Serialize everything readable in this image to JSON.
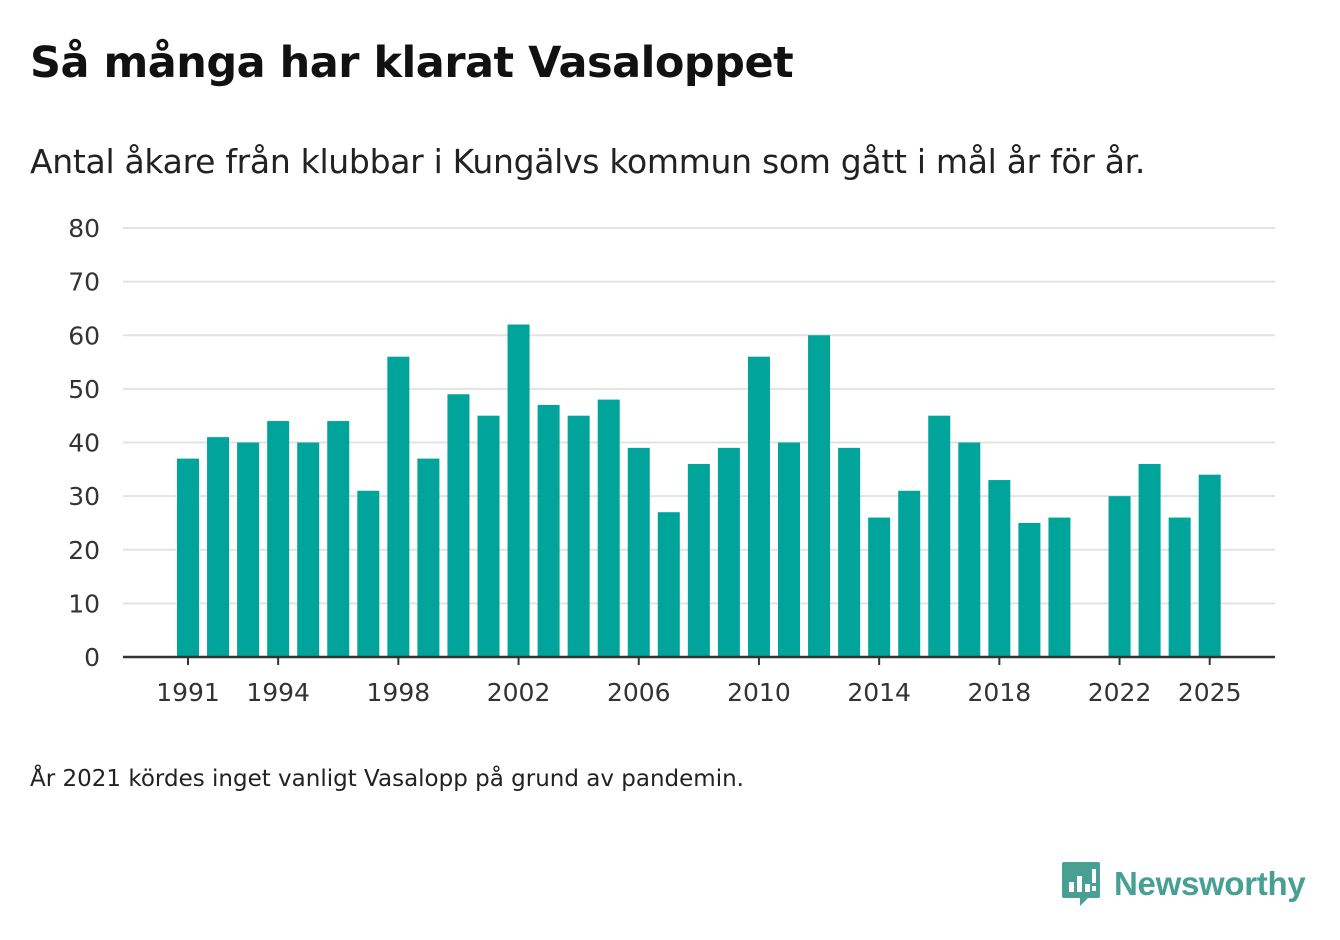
{
  "title": "Så många har klarat Vasaloppet",
  "subtitle": "Antal åkare från klubbar i Kungälvs kommun som gått i mål år för år.",
  "note": "År 2021 kördes inget vanligt Vasalopp på grund av pandemin.",
  "brand": {
    "name": "Newsworthy",
    "icon": "newsworthy-chart-bubble-icon",
    "color": "#48a095"
  },
  "colors": {
    "bar": "#00a49a",
    "grid": "#e3e3e3",
    "axis": "#333333"
  },
  "chart_data": {
    "type": "bar",
    "title": "Så många har klarat Vasaloppet",
    "xlabel": "",
    "ylabel": "",
    "ylim": [
      0,
      80
    ],
    "yticks": [
      0,
      10,
      20,
      30,
      40,
      50,
      60,
      70,
      80
    ],
    "xtick_labels": [
      "1991",
      "1994",
      "1998",
      "2002",
      "2006",
      "2010",
      "2014",
      "2018",
      "2022",
      "2025"
    ],
    "categories": [
      "1991",
      "1992",
      "1993",
      "1994",
      "1995",
      "1996",
      "1997",
      "1998",
      "1999",
      "2000",
      "2001",
      "2002",
      "2003",
      "2004",
      "2005",
      "2006",
      "2007",
      "2008",
      "2009",
      "2010",
      "2011",
      "2012",
      "2013",
      "2014",
      "2015",
      "2016",
      "2017",
      "2018",
      "2019",
      "2020",
      "2021",
      "2022",
      "2023",
      "2024",
      "2025"
    ],
    "values": [
      37,
      41,
      40,
      44,
      40,
      44,
      31,
      56,
      37,
      49,
      45,
      62,
      47,
      45,
      48,
      39,
      27,
      36,
      39,
      56,
      40,
      60,
      39,
      26,
      31,
      45,
      40,
      33,
      25,
      26,
      null,
      30,
      36,
      26,
      34
    ],
    "grid": true,
    "legend": "none"
  }
}
